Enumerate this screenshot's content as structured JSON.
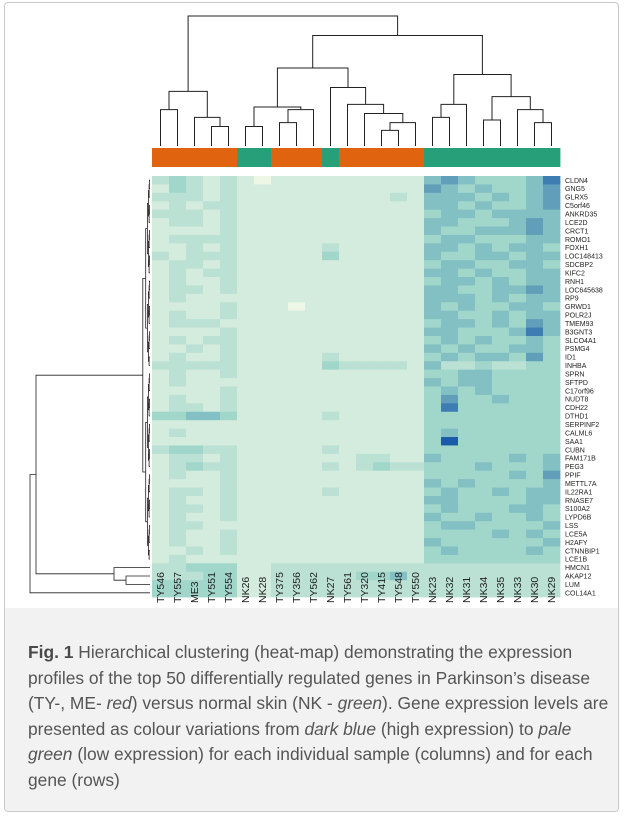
{
  "chart_data": {
    "type": "heatmap",
    "title": "",
    "xlabel": "",
    "ylabel": "",
    "columns": [
      "TY546",
      "TY557",
      "ME3",
      "TY551",
      "TY554",
      "NK26",
      "NK28",
      "TY375",
      "TY356",
      "TY562",
      "NK27",
      "TY561",
      "TY320",
      "TY415",
      "TY548",
      "TY550",
      "NK23",
      "NK32",
      "NK31",
      "NK34",
      "NK35",
      "NK33",
      "NK30",
      "NK29"
    ],
    "column_groups": [
      "red",
      "red",
      "red",
      "red",
      "red",
      "green",
      "green",
      "red",
      "red",
      "red",
      "green",
      "red",
      "red",
      "red",
      "red",
      "red",
      "green",
      "green",
      "green",
      "green",
      "green",
      "green",
      "green",
      "green"
    ],
    "group_colors": {
      "red": "#e06410",
      "green": "#27a07a"
    },
    "rows": [
      "CLDN4",
      "GNG5",
      "GLRX5",
      "C5orf46",
      "ANKRD35",
      "LCE2D",
      "CRCT1",
      "ROMO1",
      "FOXH1",
      "LOC148413",
      "SDCBP2",
      "KIFC2",
      "RNH1",
      "LOC645638",
      "RP9",
      "GRWD1",
      "POLR2J",
      "TMEM93",
      "B3GNT3",
      "SLCO4A1",
      "PSMG4",
      "ID1",
      "INHBA",
      "SPRN",
      "SFTPD",
      "C17orf96",
      "NUDT8",
      "CDH22",
      "DTHD1",
      "SERPINF2",
      "CALML6",
      "SAA1",
      "CUBN",
      "FAM171B",
      "PEG3",
      "PPIF",
      "METTL7A",
      "IL22RA1",
      "RNASE7",
      "S100A2",
      "LYPD6B",
      "LSS",
      "LCE5A",
      "H2AFY",
      "CTNNBIP1",
      "LCE1B",
      "HMCN1",
      "AKAP12",
      "LUM",
      "COL14A1"
    ],
    "color_scale": {
      "low": "#eef7e6",
      "mid": "#94d1c7",
      "high": "#1a5ba8",
      "low_label": "pale green",
      "high_label": "dark blue"
    },
    "values": [
      [
        2,
        3,
        2,
        1,
        2,
        1,
        0,
        1,
        1,
        1,
        1,
        1,
        1,
        1,
        1,
        1,
        4,
        5,
        4,
        3,
        3,
        3,
        4,
        6
      ],
      [
        1,
        3,
        2,
        1,
        2,
        1,
        1,
        1,
        1,
        1,
        1,
        1,
        1,
        1,
        1,
        1,
        5,
        4,
        3,
        4,
        3,
        3,
        4,
        5
      ],
      [
        2,
        2,
        2,
        1,
        2,
        1,
        1,
        1,
        1,
        1,
        1,
        1,
        1,
        1,
        2,
        1,
        4,
        4,
        4,
        3,
        4,
        3,
        4,
        5
      ],
      [
        1,
        2,
        1,
        2,
        2,
        1,
        1,
        1,
        1,
        1,
        1,
        1,
        1,
        1,
        1,
        1,
        4,
        4,
        3,
        4,
        3,
        3,
        4,
        5
      ],
      [
        2,
        2,
        2,
        1,
        2,
        1,
        1,
        1,
        1,
        1,
        1,
        1,
        1,
        1,
        1,
        1,
        3,
        4,
        4,
        3,
        4,
        4,
        4,
        4
      ],
      [
        1,
        2,
        2,
        1,
        2,
        1,
        1,
        1,
        1,
        1,
        1,
        1,
        1,
        1,
        1,
        1,
        4,
        4,
        3,
        3,
        3,
        4,
        5,
        4
      ],
      [
        1,
        1,
        1,
        1,
        2,
        1,
        1,
        1,
        1,
        1,
        1,
        1,
        1,
        1,
        1,
        1,
        4,
        3,
        3,
        4,
        4,
        4,
        5,
        4
      ],
      [
        1,
        2,
        2,
        2,
        2,
        1,
        1,
        1,
        1,
        1,
        1,
        1,
        1,
        1,
        1,
        1,
        3,
        4,
        4,
        3,
        3,
        3,
        4,
        4
      ],
      [
        1,
        1,
        2,
        1,
        2,
        1,
        1,
        1,
        1,
        1,
        2,
        1,
        1,
        1,
        1,
        1,
        4,
        4,
        3,
        4,
        3,
        4,
        4,
        3
      ],
      [
        2,
        1,
        2,
        2,
        2,
        1,
        1,
        1,
        1,
        1,
        3,
        1,
        1,
        1,
        1,
        1,
        4,
        3,
        3,
        4,
        4,
        3,
        4,
        4
      ],
      [
        1,
        2,
        2,
        1,
        2,
        1,
        1,
        1,
        1,
        1,
        1,
        1,
        1,
        1,
        1,
        1,
        3,
        4,
        4,
        3,
        3,
        4,
        4,
        3
      ],
      [
        1,
        2,
        1,
        2,
        2,
        1,
        1,
        1,
        1,
        1,
        1,
        1,
        1,
        1,
        1,
        1,
        4,
        4,
        3,
        4,
        3,
        3,
        4,
        4
      ],
      [
        1,
        2,
        1,
        1,
        2,
        1,
        1,
        1,
        1,
        1,
        1,
        1,
        1,
        1,
        1,
        1,
        3,
        4,
        4,
        3,
        4,
        3,
        4,
        4
      ],
      [
        1,
        2,
        2,
        1,
        2,
        1,
        1,
        1,
        1,
        1,
        1,
        1,
        1,
        1,
        1,
        1,
        4,
        4,
        3,
        3,
        4,
        4,
        5,
        4
      ],
      [
        1,
        2,
        1,
        1,
        1,
        1,
        1,
        1,
        1,
        1,
        1,
        1,
        1,
        1,
        1,
        1,
        4,
        4,
        4,
        3,
        4,
        3,
        4,
        4
      ],
      [
        1,
        1,
        1,
        1,
        2,
        1,
        1,
        1,
        0,
        1,
        1,
        1,
        1,
        1,
        1,
        1,
        4,
        3,
        4,
        3,
        3,
        4,
        4,
        3
      ],
      [
        1,
        2,
        1,
        1,
        2,
        1,
        1,
        1,
        1,
        1,
        1,
        1,
        1,
        1,
        1,
        1,
        4,
        4,
        3,
        3,
        4,
        3,
        4,
        4
      ],
      [
        1,
        2,
        2,
        2,
        1,
        1,
        1,
        1,
        1,
        1,
        1,
        1,
        1,
        1,
        1,
        1,
        3,
        4,
        4,
        3,
        4,
        3,
        5,
        4
      ],
      [
        1,
        1,
        1,
        1,
        2,
        1,
        1,
        1,
        1,
        1,
        1,
        1,
        1,
        1,
        1,
        1,
        4,
        4,
        3,
        3,
        3,
        4,
        6,
        4
      ],
      [
        1,
        2,
        1,
        2,
        2,
        1,
        1,
        1,
        1,
        1,
        1,
        1,
        1,
        1,
        1,
        1,
        3,
        4,
        3,
        4,
        3,
        3,
        4,
        3
      ],
      [
        1,
        1,
        2,
        1,
        2,
        1,
        1,
        1,
        1,
        1,
        1,
        1,
        1,
        1,
        1,
        1,
        4,
        3,
        4,
        3,
        3,
        4,
        4,
        3
      ],
      [
        1,
        2,
        1,
        1,
        2,
        1,
        1,
        1,
        1,
        1,
        2,
        1,
        1,
        1,
        1,
        1,
        3,
        4,
        3,
        4,
        4,
        3,
        5,
        3
      ],
      [
        2,
        2,
        2,
        2,
        2,
        1,
        1,
        1,
        1,
        1,
        3,
        2,
        2,
        2,
        2,
        1,
        4,
        2,
        2,
        3,
        2,
        2,
        3,
        3
      ],
      [
        1,
        2,
        1,
        1,
        2,
        1,
        1,
        1,
        1,
        1,
        1,
        1,
        1,
        1,
        1,
        1,
        3,
        3,
        4,
        4,
        3,
        3,
        3,
        3
      ],
      [
        1,
        2,
        1,
        1,
        1,
        1,
        1,
        1,
        1,
        1,
        1,
        1,
        1,
        1,
        1,
        1,
        4,
        3,
        4,
        4,
        3,
        3,
        3,
        3
      ],
      [
        1,
        1,
        1,
        1,
        2,
        1,
        1,
        1,
        1,
        1,
        1,
        1,
        1,
        1,
        1,
        1,
        3,
        4,
        3,
        4,
        3,
        3,
        3,
        3
      ],
      [
        1,
        2,
        1,
        1,
        2,
        1,
        1,
        1,
        1,
        1,
        1,
        1,
        1,
        1,
        1,
        1,
        3,
        5,
        3,
        3,
        4,
        3,
        3,
        3
      ],
      [
        1,
        2,
        2,
        1,
        2,
        1,
        1,
        1,
        1,
        1,
        1,
        1,
        1,
        1,
        1,
        1,
        3,
        6,
        3,
        3,
        3,
        3,
        3,
        3
      ],
      [
        3,
        3,
        4,
        4,
        3,
        1,
        1,
        1,
        1,
        1,
        2,
        1,
        1,
        1,
        1,
        1,
        3,
        3,
        3,
        3,
        3,
        3,
        3,
        3
      ],
      [
        1,
        1,
        1,
        1,
        1,
        1,
        1,
        1,
        1,
        1,
        1,
        1,
        1,
        1,
        1,
        1,
        3,
        3,
        3,
        3,
        3,
        3,
        3,
        3
      ],
      [
        1,
        2,
        1,
        1,
        1,
        1,
        1,
        1,
        1,
        1,
        1,
        1,
        1,
        1,
        1,
        1,
        3,
        4,
        3,
        3,
        3,
        3,
        3,
        3
      ],
      [
        1,
        1,
        1,
        1,
        1,
        1,
        1,
        1,
        1,
        1,
        1,
        1,
        1,
        1,
        1,
        1,
        3,
        7,
        3,
        3,
        3,
        3,
        3,
        3
      ],
      [
        2,
        3,
        3,
        2,
        2,
        1,
        1,
        1,
        1,
        1,
        2,
        1,
        1,
        1,
        1,
        1,
        3,
        3,
        3,
        3,
        3,
        3,
        3,
        3
      ],
      [
        1,
        2,
        2,
        1,
        2,
        1,
        1,
        1,
        1,
        1,
        1,
        1,
        2,
        2,
        1,
        1,
        4,
        3,
        3,
        3,
        3,
        4,
        3,
        4
      ],
      [
        1,
        2,
        3,
        2,
        2,
        1,
        1,
        1,
        1,
        1,
        2,
        1,
        2,
        3,
        2,
        2,
        3,
        3,
        3,
        4,
        3,
        3,
        3,
        4
      ],
      [
        1,
        2,
        1,
        1,
        2,
        1,
        1,
        1,
        1,
        1,
        1,
        1,
        1,
        1,
        1,
        1,
        3,
        3,
        3,
        3,
        3,
        4,
        3,
        5
      ],
      [
        1,
        1,
        1,
        1,
        2,
        1,
        1,
        1,
        1,
        1,
        1,
        1,
        1,
        1,
        1,
        1,
        4,
        3,
        4,
        3,
        3,
        3,
        3,
        4
      ],
      [
        1,
        2,
        2,
        1,
        2,
        1,
        1,
        1,
        1,
        1,
        2,
        1,
        1,
        1,
        1,
        1,
        3,
        4,
        3,
        3,
        4,
        3,
        4,
        4
      ],
      [
        1,
        2,
        1,
        1,
        2,
        1,
        1,
        1,
        1,
        1,
        1,
        1,
        1,
        1,
        1,
        1,
        4,
        4,
        3,
        3,
        3,
        3,
        4,
        4
      ],
      [
        1,
        2,
        2,
        1,
        2,
        1,
        1,
        1,
        1,
        1,
        1,
        1,
        1,
        1,
        1,
        1,
        3,
        4,
        3,
        3,
        3,
        4,
        4,
        3
      ],
      [
        1,
        2,
        1,
        1,
        2,
        1,
        1,
        1,
        1,
        1,
        1,
        1,
        1,
        1,
        1,
        1,
        4,
        3,
        3,
        4,
        3,
        3,
        4,
        3
      ],
      [
        1,
        2,
        2,
        1,
        1,
        1,
        1,
        1,
        1,
        1,
        1,
        1,
        1,
        1,
        1,
        1,
        3,
        4,
        4,
        3,
        3,
        3,
        3,
        4
      ],
      [
        1,
        2,
        1,
        1,
        2,
        1,
        1,
        1,
        1,
        1,
        1,
        1,
        1,
        1,
        1,
        1,
        3,
        3,
        3,
        3,
        4,
        3,
        4,
        3
      ],
      [
        1,
        2,
        1,
        1,
        2,
        1,
        1,
        1,
        1,
        1,
        1,
        1,
        1,
        1,
        1,
        1,
        4,
        3,
        3,
        3,
        3,
        3,
        3,
        4
      ],
      [
        1,
        1,
        2,
        1,
        2,
        1,
        1,
        1,
        1,
        1,
        1,
        1,
        1,
        1,
        1,
        1,
        3,
        4,
        3,
        3,
        3,
        3,
        4,
        3
      ],
      [
        1,
        2,
        1,
        1,
        1,
        1,
        1,
        1,
        1,
        1,
        1,
        1,
        1,
        1,
        1,
        1,
        3,
        3,
        3,
        3,
        3,
        3,
        3,
        3
      ],
      [
        2,
        2,
        3,
        3,
        3,
        1,
        1,
        2,
        2,
        2,
        2,
        2,
        2,
        2,
        2,
        2,
        2,
        2,
        2,
        2,
        2,
        2,
        2,
        2
      ],
      [
        2,
        2,
        2,
        3,
        3,
        1,
        1,
        2,
        2,
        2,
        2,
        2,
        3,
        3,
        4,
        2,
        2,
        2,
        2,
        2,
        2,
        2,
        2,
        2
      ],
      [
        3,
        3,
        3,
        3,
        3,
        1,
        1,
        2,
        2,
        2,
        2,
        2,
        2,
        2,
        2,
        2,
        2,
        2,
        2,
        2,
        2,
        2,
        2,
        2
      ],
      [
        3,
        3,
        3,
        3,
        3,
        1,
        1,
        2,
        2,
        2,
        2,
        2,
        2,
        2,
        2,
        2,
        2,
        2,
        2,
        2,
        2,
        2,
        2,
        2
      ]
    ]
  },
  "caption": {
    "label": "Fig. 1",
    "text_1": " Hierarchical clustering (heat-map) demonstrating the expression profiles of the top 50 differentially regulated genes in Parkinson’s disease (TY-, ME- ",
    "red": "red",
    "text_2": ") versus normal skin (NK - ",
    "green": "green",
    "text_3": "). Gene expression levels are presented as colour variations from ",
    "dark_blue": "dark blue",
    "text_4": " (high expression) to ",
    "pale_green": "pale green",
    "text_5": " (low expression) for each individual sample (columns) and for each gene (rows)"
  }
}
